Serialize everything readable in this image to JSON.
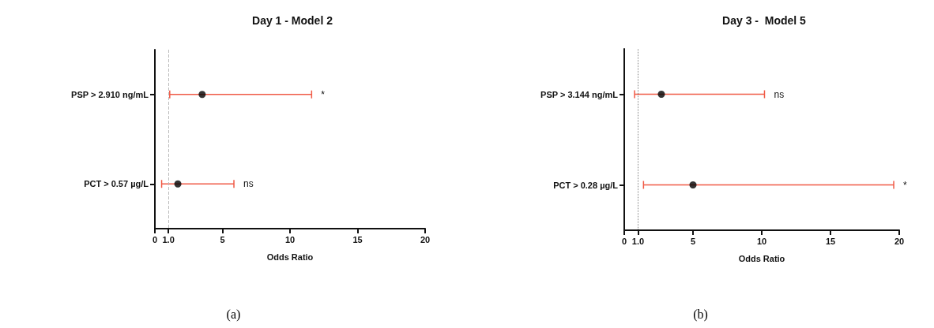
{
  "chart_data": [
    {
      "type": "scatter",
      "title": "Day 1 - Model 2",
      "xlabel": "Odds Ratio",
      "orientation": "horizontal",
      "marker": "circle",
      "categories": [
        "PSP > 2.910 ng/mL",
        "PCT > 0.57 µg/L"
      ],
      "series": [
        {
          "color": "#000000",
          "values": [
            3.5,
            1.7
          ],
          "errors": [
            [
              1.1,
              11.6
            ],
            [
              0.5,
              5.85
            ]
          ]
        }
      ],
      "xlim": [
        0,
        20
      ],
      "xticks": [
        0,
        {
          "value": 1,
          "label": "1.0"
        },
        5,
        10,
        15,
        20
      ],
      "ref_lines": [
        {
          "axis": "x",
          "value": 1,
          "color": "#bbbbbb",
          "line_style": "dashed"
        }
      ],
      "annotations": [
        "*",
        "ns",
        "(a)"
      ]
    },
    {
      "type": "scatter",
      "title": "Day 3 -  Model 5",
      "xlabel": "Odds Ratio",
      "orientation": "horizontal",
      "marker": "circle",
      "categories": [
        "PSP > 3.144 ng/mL",
        "PCT > 0.28 µg/L"
      ],
      "series": [
        {
          "color": "#000000",
          "values": [
            2.7,
            5.0
          ],
          "errors": [
            [
              0.75,
              10.2
            ],
            [
              1.4,
              19.6
            ]
          ]
        }
      ],
      "xlim": [
        0,
        20
      ],
      "xticks": [
        0,
        {
          "value": 1,
          "label": "1.0"
        },
        5,
        10,
        15,
        20
      ],
      "ref_lines": [
        {
          "axis": "x",
          "value": 1,
          "color": "#888888",
          "line_style": "dotted"
        }
      ],
      "annotations": [
        "ns",
        "*",
        "(b)"
      ]
    }
  ]
}
